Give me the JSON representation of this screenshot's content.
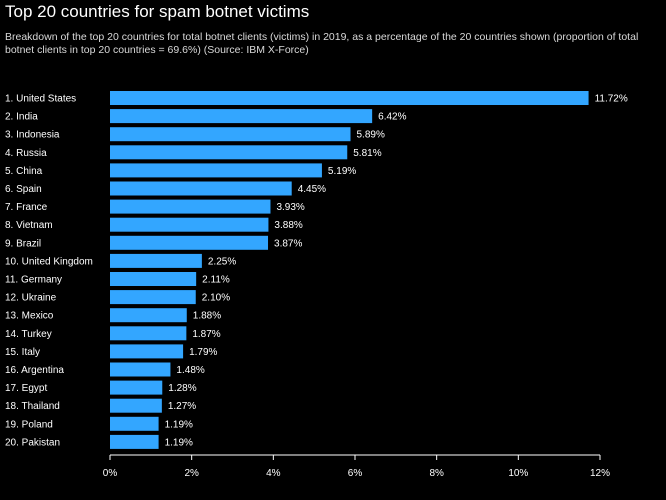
{
  "title": "Top 20 countries for spam botnet victims",
  "subtitle": "Breakdown of the top 20 countries for total botnet clients (victims) in 2019, as a percentage of the 20 countries shown (proportion of total botnet clients in top 20 countries = 69.6%) (Source: IBM X-Force)",
  "colors": {
    "background": "#000000",
    "bar": "#33a6ff",
    "text": "#ffffff",
    "axis": "#ffffff"
  },
  "chart_data": {
    "type": "bar",
    "orientation": "horizontal",
    "title": "Top 20 countries for spam botnet victims",
    "categories": [
      "1. United States",
      "2. India",
      "3. Indonesia",
      "4. Russia",
      "5. China",
      "6. Spain",
      "7. France",
      "8. Vietnam",
      "9. Brazil",
      "10. United Kingdom",
      "11. Germany",
      "12. Ukraine",
      "13. Mexico",
      "14. Turkey",
      "15. Italy",
      "16. Argentina",
      "17. Egypt",
      "18. Thailand",
      "19. Poland",
      "20. Pakistan"
    ],
    "values": [
      11.72,
      6.42,
      5.89,
      5.81,
      5.19,
      4.45,
      3.93,
      3.88,
      3.87,
      2.25,
      2.11,
      2.1,
      1.88,
      1.87,
      1.79,
      1.48,
      1.28,
      1.27,
      1.19,
      1.19
    ],
    "value_labels": [
      "11.72%",
      "6.42%",
      "5.89%",
      "5.81%",
      "5.19%",
      "4.45%",
      "3.93%",
      "3.88%",
      "3.87%",
      "2.25%",
      "2.11%",
      "2.10%",
      "1.88%",
      "1.87%",
      "1.79%",
      "1.48%",
      "1.28%",
      "1.27%",
      "1.19%",
      "1.19%"
    ],
    "xlim": [
      0,
      12
    ],
    "xticks": [
      0,
      2,
      4,
      6,
      8,
      10,
      12
    ],
    "xtick_labels": [
      "0%",
      "2%",
      "4%",
      "6%",
      "8%",
      "10%",
      "12%"
    ],
    "grid": false,
    "legend": "none"
  }
}
